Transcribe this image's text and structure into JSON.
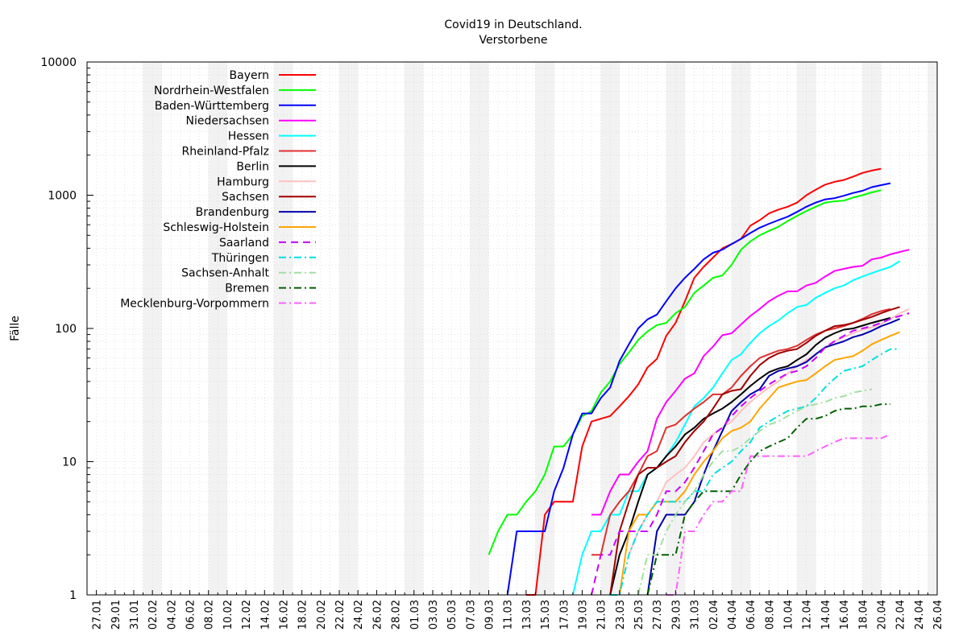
{
  "chart_data": {
    "type": "line",
    "title": "Covid19 in Deutschland.",
    "subtitle": "Verstorbene",
    "xlabel": "",
    "ylabel": "Fälle",
    "yscale": "log",
    "ylim": [
      1,
      10000
    ],
    "yticks": [
      1,
      10,
      100,
      1000,
      10000
    ],
    "yticklabels": [
      "1",
      "10",
      "100",
      "1000",
      "10000"
    ],
    "xlim": [
      "2020-01-26",
      "2020-04-26"
    ],
    "xticks": [
      "27.01",
      "29.01",
      "31.01",
      "02.02",
      "04.02",
      "06.02",
      "08.02",
      "10.02",
      "12.02",
      "14.02",
      "16.02",
      "18.02",
      "20.02",
      "22.02",
      "24.02",
      "26.02",
      "28.02",
      "01.03",
      "03.03",
      "05.03",
      "07.03",
      "09.03",
      "11.03",
      "13.03",
      "15.03",
      "17.03",
      "19.03",
      "21.03",
      "23.03",
      "25.03",
      "27.03",
      "29.03",
      "31.03",
      "02.04",
      "04.04",
      "06.04",
      "08.04",
      "10.04",
      "12.04",
      "14.04",
      "16.04",
      "18.04",
      "20.04",
      "22.04",
      "24.04",
      "26.04"
    ],
    "weekend_shading": true,
    "grid": true,
    "legend_position": "top-left",
    "series": [
      {
        "name": "Bayern",
        "color": "#ff0000",
        "dash": "solid",
        "start": "2020-03-13",
        "values": [
          1,
          1,
          4,
          5,
          5,
          5,
          13,
          20,
          21,
          22,
          26,
          31,
          38,
          51,
          59,
          88,
          110,
          160,
          240,
          290,
          340,
          400,
          430,
          470,
          590,
          650,
          730,
          780,
          820,
          880,
          1000,
          1100,
          1200,
          1260,
          1300,
          1380,
          1470,
          1530,
          1580
        ]
      },
      {
        "name": "Nordrhein-Westfalen",
        "color": "#00ff00",
        "dash": "solid",
        "start": "2020-03-09",
        "values": [
          2,
          3,
          4,
          4,
          5,
          6,
          8,
          13,
          13,
          16,
          22,
          24,
          33,
          40,
          54,
          66,
          82,
          95,
          106,
          110,
          130,
          145,
          185,
          210,
          240,
          250,
          300,
          390,
          450,
          500,
          540,
          580,
          640,
          700,
          760,
          820,
          880,
          900,
          910,
          960,
          1000,
          1050,
          1090
        ]
      },
      {
        "name": "Baden-Württemberg",
        "color": "#0000ff",
        "dash": "solid",
        "start": "2020-03-11",
        "values": [
          1,
          3,
          3,
          3,
          3,
          6,
          9,
          16,
          23,
          23,
          30,
          36,
          57,
          76,
          100,
          117,
          127,
          160,
          200,
          240,
          280,
          330,
          370,
          390,
          430,
          470,
          520,
          570,
          610,
          650,
          690,
          750,
          820,
          880,
          930,
          950,
          990,
          1040,
          1080,
          1150,
          1190,
          1230
        ]
      },
      {
        "name": "Niedersachsen",
        "color": "#ff00ff",
        "dash": "solid",
        "start": "2020-03-20",
        "values": [
          4,
          4,
          6,
          8,
          8,
          10,
          12,
          21,
          28,
          34,
          42,
          46,
          62,
          73,
          89,
          92,
          107,
          124,
          140,
          160,
          176,
          190,
          190,
          210,
          220,
          245,
          270,
          280,
          290,
          295,
          330,
          340,
          360,
          375,
          390
        ]
      },
      {
        "name": "Hessen",
        "color": "#00ffff",
        "dash": "solid",
        "start": "2020-03-18",
        "values": [
          1,
          2,
          3,
          3,
          4,
          4,
          6,
          6,
          8,
          9,
          11,
          14,
          19,
          26,
          30,
          36,
          46,
          58,
          64,
          78,
          92,
          104,
          115,
          130,
          145,
          150,
          170,
          185,
          200,
          210,
          230,
          245,
          260,
          275,
          290,
          320
        ]
      },
      {
        "name": "Rheinland-Pfalz",
        "color": "#e03030",
        "dash": "solid",
        "start": "2020-03-20",
        "values": [
          2,
          2,
          4,
          5,
          6,
          8,
          11,
          12,
          18,
          19,
          22,
          25,
          28,
          32,
          32,
          36,
          44,
          52,
          60,
          64,
          68,
          70,
          74,
          82,
          90,
          96,
          100,
          104,
          110,
          118,
          128,
          135,
          140
        ]
      },
      {
        "name": "Berlin",
        "color": "#000000",
        "dash": "solid",
        "start": "2020-03-22",
        "values": [
          1,
          2,
          3,
          5,
          8,
          9,
          11,
          13,
          16,
          18,
          21,
          23,
          25,
          28,
          32,
          37,
          42,
          47,
          50,
          52,
          58,
          64,
          75,
          85,
          92,
          98,
          100,
          105,
          110,
          115,
          120
        ]
      },
      {
        "name": "Hamburg",
        "color": "#ffc0c0",
        "dash": "solid",
        "start": "2020-03-24",
        "values": [
          2,
          3,
          4,
          5,
          7,
          8,
          9,
          11,
          14,
          16,
          18,
          20,
          24,
          28,
          32,
          36,
          40,
          46,
          52,
          58,
          64,
          72,
          80,
          86,
          92,
          98,
          102,
          108,
          118,
          130,
          140
        ]
      },
      {
        "name": "Sachsen",
        "color": "#a00000",
        "dash": "solid",
        "start": "2020-03-22",
        "values": [
          1,
          3,
          5,
          8,
          9,
          9,
          10,
          11,
          14,
          17,
          20,
          25,
          32,
          34,
          35,
          44,
          53,
          60,
          65,
          68,
          70,
          78,
          88,
          96,
          104,
          106,
          110,
          116,
          122,
          130,
          138,
          145
        ]
      },
      {
        "name": "Brandenburg",
        "color": "#0000aa",
        "dash": "solid",
        "start": "2020-03-26",
        "values": [
          1,
          3,
          4,
          4,
          4,
          5,
          8,
          12,
          17,
          24,
          28,
          32,
          35,
          44,
          48,
          50,
          52,
          56,
          64,
          72,
          76,
          80,
          86,
          90,
          96,
          104,
          110,
          118
        ]
      },
      {
        "name": "Schleswig-Holstein",
        "color": "#ffa500",
        "dash": "solid",
        "start": "2020-03-23",
        "values": [
          1,
          3,
          4,
          4,
          5,
          5,
          5,
          6,
          8,
          10,
          12,
          15,
          17,
          18,
          20,
          25,
          30,
          36,
          38,
          40,
          41,
          46,
          52,
          58,
          60,
          62,
          68,
          76,
          82,
          88,
          94
        ]
      },
      {
        "name": "Saarland",
        "color": "#cc00ff",
        "dash": "dash",
        "start": "2020-03-20",
        "values": [
          1,
          2,
          2,
          3,
          3,
          3,
          3,
          4,
          6,
          6,
          7,
          9,
          12,
          16,
          18,
          22,
          26,
          30,
          34,
          38,
          42,
          46,
          48,
          52,
          60,
          72,
          80,
          88,
          96,
          100,
          104,
          110,
          118,
          124,
          130
        ]
      },
      {
        "name": "Thüringen",
        "color": "#00e0e0",
        "dash": "dashdot",
        "start": "2020-03-22",
        "values": [
          1,
          1,
          2,
          3,
          4,
          5,
          5,
          5,
          5,
          6,
          6,
          8,
          9,
          10,
          12,
          14,
          18,
          20,
          22,
          24,
          25,
          26,
          30,
          36,
          42,
          48,
          50,
          52,
          58,
          64,
          70,
          70
        ]
      },
      {
        "name": "Sachsen-Anhalt",
        "color": "#a0e0a0",
        "dash": "dashdot",
        "start": "2020-03-25",
        "values": [
          1,
          2,
          2,
          3,
          4,
          5,
          6,
          8,
          10,
          12,
          12,
          13,
          15,
          17,
          19,
          20,
          22,
          24,
          26,
          27,
          28,
          30,
          31,
          33,
          34,
          35
        ]
      },
      {
        "name": "Bremen",
        "color": "#006000",
        "dash": "dashdot",
        "start": "2020-03-26",
        "values": [
          1,
          2,
          2,
          2,
          4,
          5,
          6,
          6,
          6,
          6,
          8,
          10,
          12,
          13,
          14,
          15,
          18,
          21,
          21,
          22,
          24,
          25,
          25,
          26,
          26,
          27,
          27
        ]
      },
      {
        "name": "Mecklenburg-Vorpommern",
        "color": "#ff60ff",
        "dash": "dashdot",
        "start": "2020-03-28",
        "values": [
          1,
          1,
          3,
          3,
          4,
          5,
          5,
          6,
          6,
          11,
          11,
          11,
          11,
          11,
          11,
          11,
          12,
          13,
          14,
          15,
          15,
          15,
          15,
          15,
          16
        ]
      }
    ]
  }
}
